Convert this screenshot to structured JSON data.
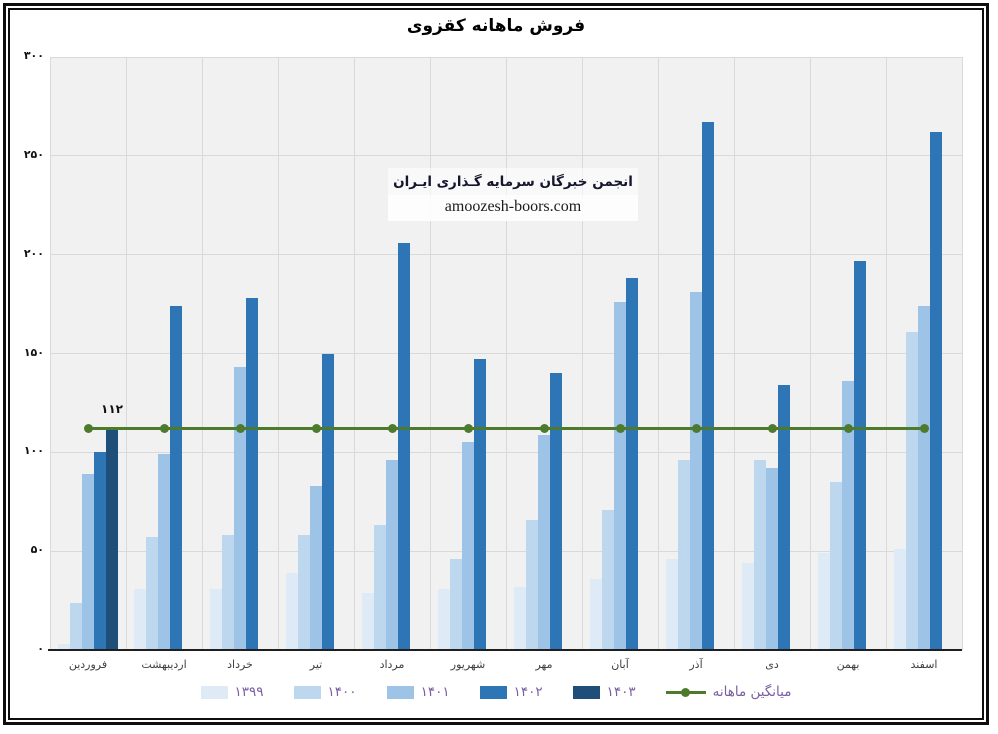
{
  "title": "فروش ماهانه کقزوی",
  "watermark": {
    "line1": "انجمن خبرگان سرمایه گـذاری ایـران",
    "line2": "amoozesh-boors.com"
  },
  "legend": {
    "mean_label": "میانگین ماهانه",
    "text_color": "#7a5fa5"
  },
  "colors": {
    "plot_bg": "#f1f1f1",
    "grid": "#d9d9d9",
    "axis": "#1f1f1f",
    "mean_line": "#4e7a2e"
  },
  "chart_data": {
    "type": "bar",
    "title": "فروش ماهانه کقزوی",
    "categories": [
      "فروردین",
      "اردیبهشت",
      "خرداد",
      "تیر",
      "مرداد",
      "شهریور",
      "مهر",
      "آبان",
      "آذر",
      "دی",
      "بهمن",
      "اسفند"
    ],
    "series": [
      {
        "name": "۱۳۹۹",
        "year": "1399",
        "color": "#DEEBF7",
        "values": [
          3,
          31,
          31,
          39,
          29,
          31,
          32,
          36,
          46,
          44,
          49,
          51
        ]
      },
      {
        "name": "۱۴۰۰",
        "year": "1400",
        "color": "#BDD7EE",
        "values": [
          24,
          57,
          58,
          58,
          63,
          46,
          66,
          71,
          96,
          96,
          85,
          161
        ]
      },
      {
        "name": "۱۴۰۱",
        "year": "1401",
        "color": "#9DC3E6",
        "values": [
          89,
          99,
          143,
          83,
          96,
          105,
          109,
          176,
          181,
          92,
          136,
          174
        ]
      },
      {
        "name": "۱۴۰۲",
        "year": "1402",
        "color": "#2E75B6",
        "values": [
          100,
          174,
          178,
          150,
          206,
          147,
          140,
          188,
          267,
          134,
          197,
          262
        ]
      },
      {
        "name": "۱۴۰۳",
        "year": "1403",
        "color": "#1F4E79",
        "values": [
          112,
          null,
          null,
          null,
          null,
          null,
          null,
          null,
          null,
          null,
          null,
          null
        ]
      }
    ],
    "mean_line": {
      "label": "میانگین ماهانه",
      "value": 112,
      "color": "#4e7a2e",
      "annotation": "۱۱۲"
    },
    "ylim": [
      0,
      300
    ],
    "ytick_step": 50,
    "ytick_values": [
      0,
      50,
      100,
      150,
      200,
      250,
      300
    ],
    "ytick_labels": [
      "۰",
      "۵۰",
      "۱۰۰",
      "۱۵۰",
      "۲۰۰",
      "۲۵۰",
      "۳۰۰"
    ],
    "grid": true,
    "legend_position": "bottom"
  }
}
